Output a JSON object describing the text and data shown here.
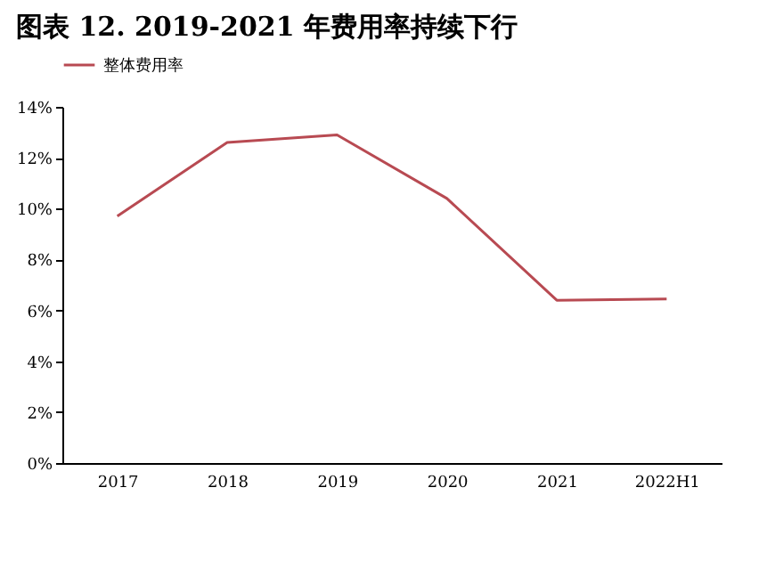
{
  "chart_data": {
    "type": "line",
    "title": "图表 12. 2019-2021 年费用率持续下行",
    "categories": [
      "2017",
      "2018",
      "2019",
      "2020",
      "2021",
      "2022H1"
    ],
    "series": [
      {
        "name": "整体费用率",
        "color": "#b84a52",
        "values": [
          9.7,
          12.6,
          12.9,
          10.4,
          6.4,
          6.45
        ]
      }
    ],
    "ylim": [
      0,
      14
    ],
    "yticks": [
      {
        "value": 0,
        "label": "0%"
      },
      {
        "value": 2,
        "label": "2%"
      },
      {
        "value": 4,
        "label": "4%"
      },
      {
        "value": 6,
        "label": "6%"
      },
      {
        "value": 8,
        "label": "8%"
      },
      {
        "value": 10,
        "label": "10%"
      },
      {
        "value": 12,
        "label": "12%"
      },
      {
        "value": 14,
        "label": "14%"
      }
    ],
    "grid": false,
    "legend": "top",
    "marker": "none",
    "line_style": "solid"
  }
}
